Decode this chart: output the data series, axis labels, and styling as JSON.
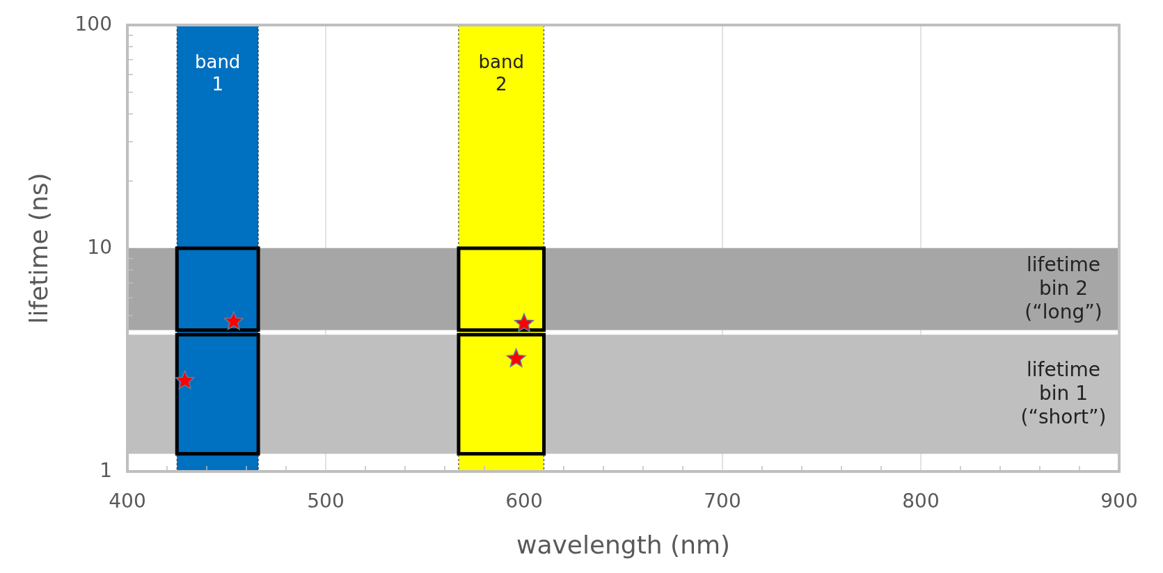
{
  "chart_data": {
    "type": "scatter",
    "xlabel": "wavelength (nm)",
    "ylabel": "lifetime (ns)",
    "log": "y",
    "xlim": [
      400,
      900
    ],
    "xticks": [
      400,
      500,
      600,
      700,
      800,
      900
    ],
    "ylim": [
      1,
      100
    ],
    "yticks": [
      1,
      10,
      100
    ],
    "grid": true,
    "marker": "star",
    "x": [
      453.6,
      429,
      600,
      596
    ],
    "series": [
      {
        "color": "#ff0000",
        "values": [
          4.7,
          2.55,
          4.6,
          3.2
        ]
      }
    ],
    "bands": [
      {
        "axis": "y",
        "from": 4.3,
        "to": 10,
        "label": "lifetime\nbin 2\n(“long”)",
        "color": "#a6a6a6"
      },
      {
        "axis": "y",
        "from": 1.2,
        "to": 4.1,
        "label": "lifetime\nbin 1\n(“short”)",
        "color": "#bfbfbf"
      },
      {
        "axis": "x",
        "from": 425,
        "to": 466,
        "label": "band\n1",
        "color": "#0070c0"
      },
      {
        "axis": "x",
        "from": 567,
        "to": 610,
        "label": "band\n2",
        "color": "#ffff00"
      }
    ]
  }
}
